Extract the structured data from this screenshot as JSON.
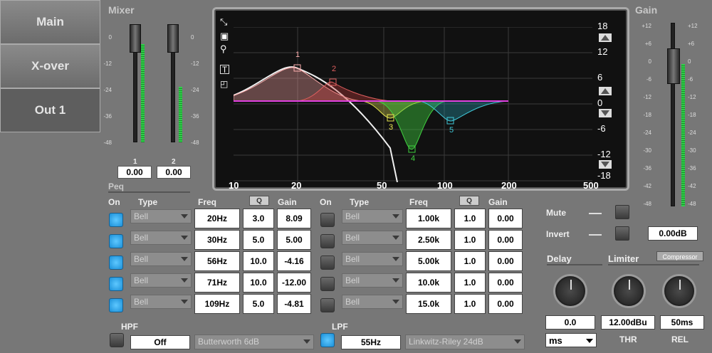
{
  "tabs": [
    {
      "label": "Main"
    },
    {
      "label": "X-over"
    },
    {
      "label": "Out 1"
    }
  ],
  "mixer": {
    "title": "Mixer",
    "ticks": [
      "0",
      "-12",
      "-24",
      "-36",
      "-48"
    ],
    "channels": [
      {
        "name": "1",
        "value": "0.00"
      },
      {
        "name": "2",
        "value": "0.00"
      }
    ]
  },
  "graph": {
    "x_ticks": [
      "10",
      "20",
      "50",
      "100",
      "200",
      "500"
    ],
    "y_ticks": [
      "18",
      "12",
      "6",
      "0",
      "-6",
      "-12",
      "-18"
    ],
    "band_labels": [
      "1",
      "2",
      "3",
      "4",
      "5"
    ]
  },
  "gain": {
    "title": "Gain",
    "ticks": [
      "+12",
      "+6",
      "0",
      "-6",
      "-12",
      "-18",
      "-24",
      "-30",
      "-36",
      "-42",
      "-48"
    ]
  },
  "peq": {
    "title": "Peq",
    "headers": {
      "on": "On",
      "type": "Type",
      "freq": "Freq",
      "q": "Q",
      "gain": "Gain"
    },
    "left": [
      {
        "on": true,
        "type": "Bell",
        "freq": "20Hz",
        "q": "3.0",
        "gain": "8.09"
      },
      {
        "on": true,
        "type": "Bell",
        "freq": "30Hz",
        "q": "5.0",
        "gain": "5.00"
      },
      {
        "on": true,
        "type": "Bell",
        "freq": "56Hz",
        "q": "10.0",
        "gain": "-4.16"
      },
      {
        "on": true,
        "type": "Bell",
        "freq": "71Hz",
        "q": "10.0",
        "gain": "-12.00"
      },
      {
        "on": true,
        "type": "Bell",
        "freq": "109Hz",
        "q": "5.0",
        "gain": "-4.81"
      }
    ],
    "right": [
      {
        "on": false,
        "type": "Bell",
        "freq": "1.00k",
        "q": "1.0",
        "gain": "0.00"
      },
      {
        "on": false,
        "type": "Bell",
        "freq": "2.50k",
        "q": "1.0",
        "gain": "0.00"
      },
      {
        "on": false,
        "type": "Bell",
        "freq": "5.00k",
        "q": "1.0",
        "gain": "0.00"
      },
      {
        "on": false,
        "type": "Bell",
        "freq": "10.0k",
        "q": "1.0",
        "gain": "0.00"
      },
      {
        "on": false,
        "type": "Bell",
        "freq": "15.0k",
        "q": "1.0",
        "gain": "0.00"
      }
    ]
  },
  "hpf": {
    "label": "HPF",
    "value": "Off",
    "type": "Butterworth 6dB"
  },
  "lpf": {
    "label": "LPF",
    "value": "55Hz",
    "type": "Linkwitz-Riley 24dB"
  },
  "mute": {
    "label": "Mute"
  },
  "invert": {
    "label": "Invert"
  },
  "gain_value": "0.00dB",
  "delay": {
    "title": "Delay",
    "value": "0.0",
    "unit": "ms"
  },
  "limiter": {
    "title": "Limiter",
    "compressor": "Compressor",
    "thr_value": "12.00dBu",
    "thr_label": "THR",
    "rel_value": "50ms",
    "rel_label": "REL"
  }
}
